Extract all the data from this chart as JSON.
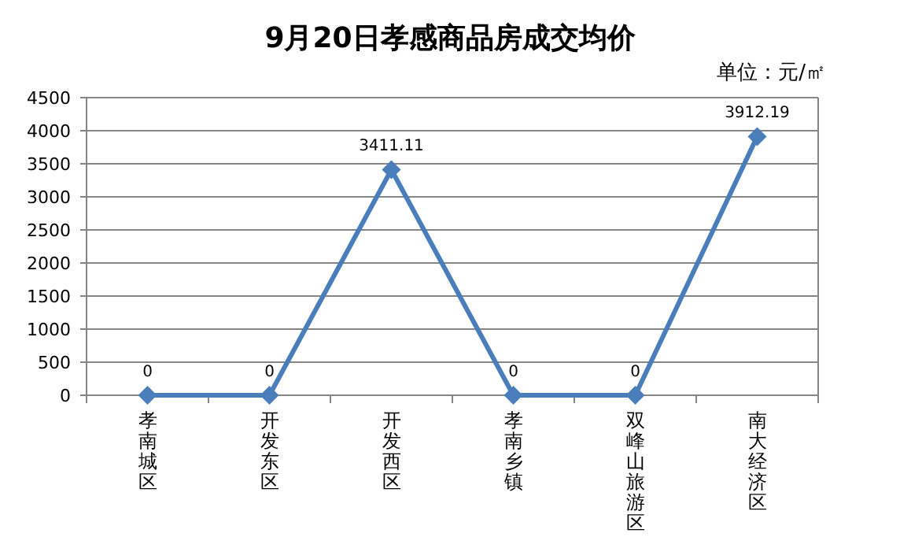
{
  "chart_data": {
    "type": "line",
    "title": "9月20日孝感商品房成交均价",
    "annotations": [
      "单位：元/㎡"
    ],
    "categories": [
      "孝南城区",
      "开发东区",
      "开发西区",
      "孝南乡镇",
      "双峰山旅游区",
      "南大经济区"
    ],
    "series": [
      {
        "color": "#4a7ebb",
        "values": [
          0,
          0,
          3411.11,
          0,
          0,
          3912.19
        ],
        "value_labels": [
          "0",
          "0",
          "3411.11",
          "0",
          "0",
          "3912.19"
        ]
      }
    ],
    "ylim": [
      0,
      4500
    ],
    "yticks": [
      0,
      500,
      1000,
      1500,
      2000,
      2500,
      3000,
      3500,
      4000,
      4500
    ],
    "grid": "y",
    "marker": "diamond",
    "line_style": "solid"
  }
}
